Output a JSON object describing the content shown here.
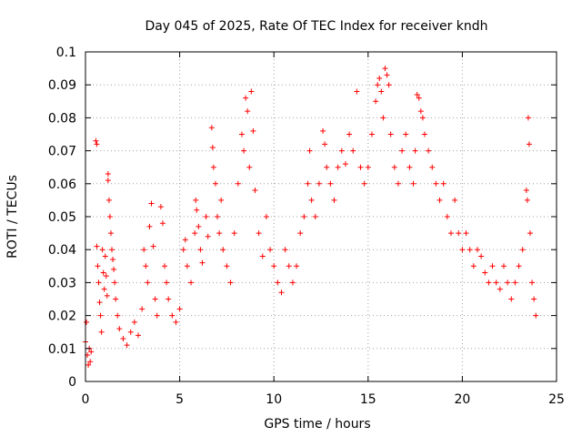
{
  "chart_data": {
    "type": "scatter",
    "title": "Day 045 of 2025, Rate Of TEC Index for receiver kndh",
    "xlabel": "GPS time / hours",
    "ylabel": "ROTI / TECUs",
    "xlim": [
      0,
      25
    ],
    "ylim": [
      0,
      0.1
    ],
    "x_ticks": [
      0,
      5,
      10,
      15,
      20,
      25
    ],
    "y_ticks": [
      0,
      0.01,
      0.02,
      0.03,
      0.04,
      0.05,
      0.06,
      0.07,
      0.08,
      0.09,
      0.1
    ],
    "x_tick_labels": [
      "0",
      "5",
      "10",
      "15",
      "20",
      "25"
    ],
    "y_tick_labels": [
      "0",
      "0.01",
      "0.02",
      "0.03",
      "0.04",
      "0.05",
      "0.06",
      "0.07",
      "0.08",
      "0.09",
      "0.1"
    ],
    "grid": true,
    "marker": "plus",
    "color": "#ff0000",
    "series": [
      {
        "points": [
          [
            0.0,
            0.012
          ],
          [
            0.05,
            0.018
          ],
          [
            0.1,
            0.008
          ],
          [
            0.15,
            0.005
          ],
          [
            0.2,
            0.01
          ],
          [
            0.25,
            0.006
          ],
          [
            0.3,
            0.009
          ],
          [
            0.55,
            0.073
          ],
          [
            0.6,
            0.072
          ],
          [
            0.6,
            0.041
          ],
          [
            0.65,
            0.035
          ],
          [
            0.7,
            0.03
          ],
          [
            0.75,
            0.024
          ],
          [
            0.8,
            0.02
          ],
          [
            0.85,
            0.015
          ],
          [
            0.9,
            0.04
          ],
          [
            0.95,
            0.033
          ],
          [
            1.0,
            0.028
          ],
          [
            1.05,
            0.038
          ],
          [
            1.1,
            0.032
          ],
          [
            1.15,
            0.026
          ],
          [
            1.2,
            0.063
          ],
          [
            1.2,
            0.061
          ],
          [
            1.25,
            0.055
          ],
          [
            1.3,
            0.05
          ],
          [
            1.35,
            0.045
          ],
          [
            1.4,
            0.04
          ],
          [
            1.45,
            0.037
          ],
          [
            1.5,
            0.034
          ],
          [
            1.55,
            0.03
          ],
          [
            1.6,
            0.025
          ],
          [
            1.7,
            0.02
          ],
          [
            1.8,
            0.016
          ],
          [
            2.0,
            0.013
          ],
          [
            2.2,
            0.011
          ],
          [
            2.4,
            0.015
          ],
          [
            2.6,
            0.018
          ],
          [
            2.8,
            0.014
          ],
          [
            3.0,
            0.022
          ],
          [
            3.1,
            0.04
          ],
          [
            3.2,
            0.035
          ],
          [
            3.3,
            0.03
          ],
          [
            3.4,
            0.047
          ],
          [
            3.5,
            0.054
          ],
          [
            3.6,
            0.041
          ],
          [
            3.7,
            0.025
          ],
          [
            3.8,
            0.02
          ],
          [
            4.0,
            0.053
          ],
          [
            4.1,
            0.048
          ],
          [
            4.2,
            0.035
          ],
          [
            4.3,
            0.03
          ],
          [
            4.4,
            0.025
          ],
          [
            4.6,
            0.02
          ],
          [
            4.8,
            0.018
          ],
          [
            5.0,
            0.022
          ],
          [
            5.2,
            0.04
          ],
          [
            5.3,
            0.043
          ],
          [
            5.4,
            0.035
          ],
          [
            5.6,
            0.03
          ],
          [
            5.8,
            0.045
          ],
          [
            5.85,
            0.055
          ],
          [
            5.9,
            0.052
          ],
          [
            6.0,
            0.047
          ],
          [
            6.1,
            0.04
          ],
          [
            6.2,
            0.036
          ],
          [
            6.4,
            0.05
          ],
          [
            6.5,
            0.044
          ],
          [
            6.7,
            0.077
          ],
          [
            6.75,
            0.071
          ],
          [
            6.8,
            0.065
          ],
          [
            6.9,
            0.06
          ],
          [
            7.0,
            0.05
          ],
          [
            7.1,
            0.045
          ],
          [
            7.2,
            0.055
          ],
          [
            7.3,
            0.04
          ],
          [
            7.5,
            0.035
          ],
          [
            7.7,
            0.03
          ],
          [
            7.9,
            0.045
          ],
          [
            8.1,
            0.06
          ],
          [
            8.3,
            0.075
          ],
          [
            8.4,
            0.07
          ],
          [
            8.5,
            0.086
          ],
          [
            8.6,
            0.082
          ],
          [
            8.7,
            0.065
          ],
          [
            8.8,
            0.088
          ],
          [
            8.9,
            0.076
          ],
          [
            9.0,
            0.058
          ],
          [
            9.2,
            0.045
          ],
          [
            9.4,
            0.038
          ],
          [
            9.6,
            0.05
          ],
          [
            9.8,
            0.04
          ],
          [
            10.0,
            0.035
          ],
          [
            10.2,
            0.03
          ],
          [
            10.4,
            0.027
          ],
          [
            10.6,
            0.04
          ],
          [
            10.8,
            0.035
          ],
          [
            11.0,
            0.03
          ],
          [
            11.2,
            0.035
          ],
          [
            11.4,
            0.045
          ],
          [
            11.6,
            0.05
          ],
          [
            11.8,
            0.06
          ],
          [
            11.9,
            0.07
          ],
          [
            12.0,
            0.055
          ],
          [
            12.2,
            0.05
          ],
          [
            12.4,
            0.06
          ],
          [
            12.6,
            0.076
          ],
          [
            12.7,
            0.072
          ],
          [
            12.8,
            0.065
          ],
          [
            13.0,
            0.06
          ],
          [
            13.2,
            0.055
          ],
          [
            13.4,
            0.065
          ],
          [
            13.6,
            0.07
          ],
          [
            13.8,
            0.066
          ],
          [
            14.0,
            0.075
          ],
          [
            14.2,
            0.07
          ],
          [
            14.4,
            0.088
          ],
          [
            14.6,
            0.065
          ],
          [
            14.8,
            0.06
          ],
          [
            15.0,
            0.065
          ],
          [
            15.2,
            0.075
          ],
          [
            15.4,
            0.085
          ],
          [
            15.5,
            0.09
          ],
          [
            15.6,
            0.092
          ],
          [
            15.7,
            0.088
          ],
          [
            15.8,
            0.08
          ],
          [
            15.9,
            0.095
          ],
          [
            16.0,
            0.093
          ],
          [
            16.1,
            0.09
          ],
          [
            16.2,
            0.075
          ],
          [
            16.4,
            0.065
          ],
          [
            16.6,
            0.06
          ],
          [
            16.8,
            0.07
          ],
          [
            17.0,
            0.075
          ],
          [
            17.2,
            0.065
          ],
          [
            17.4,
            0.06
          ],
          [
            17.5,
            0.07
          ],
          [
            17.6,
            0.087
          ],
          [
            17.7,
            0.086
          ],
          [
            17.8,
            0.082
          ],
          [
            17.9,
            0.08
          ],
          [
            18.0,
            0.075
          ],
          [
            18.2,
            0.07
          ],
          [
            18.4,
            0.065
          ],
          [
            18.6,
            0.06
          ],
          [
            18.8,
            0.055
          ],
          [
            19.0,
            0.06
          ],
          [
            19.2,
            0.05
          ],
          [
            19.4,
            0.045
          ],
          [
            19.6,
            0.055
          ],
          [
            19.8,
            0.045
          ],
          [
            20.0,
            0.04
          ],
          [
            20.2,
            0.045
          ],
          [
            20.4,
            0.04
          ],
          [
            20.6,
            0.035
          ],
          [
            20.8,
            0.04
          ],
          [
            21.0,
            0.038
          ],
          [
            21.2,
            0.033
          ],
          [
            21.4,
            0.03
          ],
          [
            21.6,
            0.035
          ],
          [
            21.8,
            0.03
          ],
          [
            22.0,
            0.028
          ],
          [
            22.2,
            0.035
          ],
          [
            22.4,
            0.03
          ],
          [
            22.6,
            0.025
          ],
          [
            22.8,
            0.03
          ],
          [
            23.0,
            0.035
          ],
          [
            23.2,
            0.04
          ],
          [
            23.4,
            0.058
          ],
          [
            23.45,
            0.055
          ],
          [
            23.5,
            0.08
          ],
          [
            23.55,
            0.072
          ],
          [
            23.6,
            0.045
          ],
          [
            23.7,
            0.03
          ],
          [
            23.8,
            0.025
          ],
          [
            23.9,
            0.02
          ]
        ]
      }
    ]
  }
}
